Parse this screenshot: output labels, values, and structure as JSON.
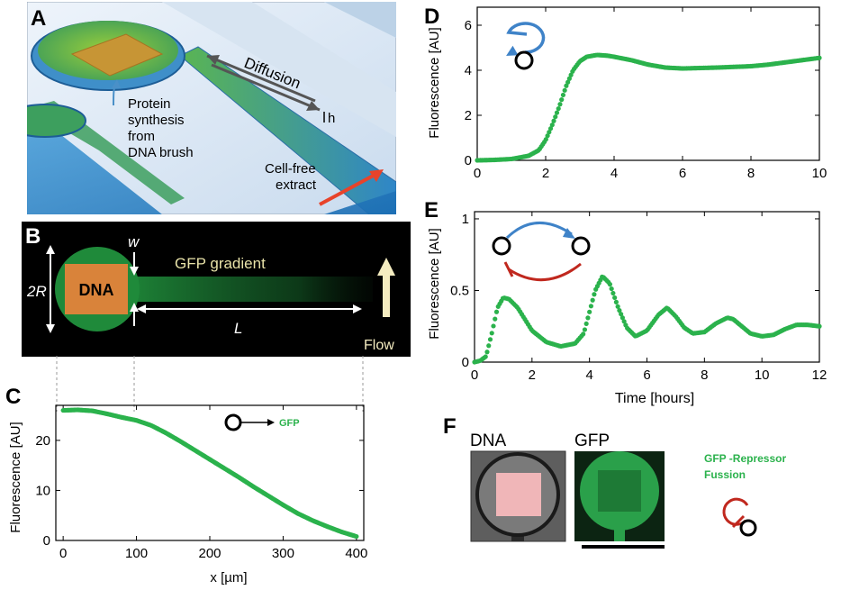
{
  "panels": {
    "A": {
      "label": "A",
      "diffusion": "Diffusion",
      "protein": [
        "Protein",
        "synthesis",
        "from",
        "DNA brush"
      ],
      "h": "h",
      "extract": [
        "Cell-free",
        "extract"
      ]
    },
    "B": {
      "label": "B",
      "dna": "DNA",
      "w": "w",
      "two_r": "2R",
      "gfp_gradient": "GFP gradient",
      "L": "L",
      "flow": "Flow"
    },
    "F": {
      "label": "F",
      "dna_title": "DNA",
      "gfp_title": "GFP",
      "fusion_text": [
        "GFP -Repressor",
        "Fussion"
      ]
    }
  },
  "colors": {
    "green_data": "#2bb24c",
    "blue_arrow": "#3f83c8",
    "red_repress": "#c0281e",
    "chamber_dna": "#d9833a",
    "flow_arrow": "#f4ecc0"
  },
  "chart_data": [
    {
      "id": "C",
      "label": "C",
      "type": "scatter",
      "xlabel": "x [µm]",
      "ylabel": "Fluorescence [AU]",
      "xlim": [
        -10,
        410
      ],
      "ylim": [
        0,
        27
      ],
      "xticks": [
        0,
        100,
        200,
        300,
        400
      ],
      "yticks": [
        0,
        10,
        20
      ],
      "legend": "GFP",
      "grid": false,
      "x": [
        0,
        20,
        40,
        60,
        80,
        100,
        120,
        140,
        160,
        180,
        200,
        220,
        240,
        260,
        280,
        300,
        320,
        340,
        360,
        380,
        400
      ],
      "y": [
        26.0,
        26.1,
        25.9,
        25.3,
        24.6,
        24.0,
        23.0,
        21.5,
        19.8,
        18.0,
        16.2,
        14.4,
        12.6,
        10.7,
        8.9,
        7.1,
        5.4,
        4.0,
        2.8,
        1.7,
        0.8
      ]
    },
    {
      "id": "D",
      "label": "D",
      "type": "scatter",
      "xlabel": "",
      "ylabel": "Fluorescence [AU]",
      "xlim": [
        0,
        10
      ],
      "ylim": [
        0,
        6.8
      ],
      "xticks": [
        0,
        2,
        4,
        6,
        8,
        10
      ],
      "yticks": [
        0,
        2,
        4,
        6
      ],
      "grid": false,
      "x": [
        0,
        0.5,
        1.0,
        1.5,
        1.8,
        2.0,
        2.2,
        2.4,
        2.6,
        2.8,
        3.0,
        3.2,
        3.5,
        3.8,
        4.0,
        4.5,
        5.0,
        5.5,
        6.0,
        6.5,
        7.0,
        7.5,
        8.0,
        8.5,
        9.0,
        9.5,
        10.0
      ],
      "y": [
        0.0,
        0.02,
        0.06,
        0.2,
        0.45,
        0.9,
        1.6,
        2.4,
        3.3,
        4.0,
        4.4,
        4.6,
        4.68,
        4.65,
        4.6,
        4.45,
        4.25,
        4.12,
        4.08,
        4.1,
        4.12,
        4.15,
        4.18,
        4.25,
        4.35,
        4.45,
        4.55
      ]
    },
    {
      "id": "E",
      "label": "E",
      "type": "scatter",
      "xlabel": "Time [hours]",
      "ylabel": "Fluorescence [AU]",
      "xlim": [
        0,
        12
      ],
      "ylim": [
        0,
        1.05
      ],
      "xticks": [
        0,
        2,
        4,
        6,
        8,
        10,
        12
      ],
      "yticks": [
        0,
        0.5,
        1
      ],
      "ytick_labels": [
        "0",
        "0.5",
        "1"
      ],
      "grid": false,
      "x": [
        0,
        0.2,
        0.4,
        0.6,
        0.8,
        1.0,
        1.2,
        1.5,
        2.0,
        2.5,
        3.0,
        3.5,
        3.8,
        4.0,
        4.2,
        4.45,
        4.7,
        5.0,
        5.3,
        5.6,
        6.0,
        6.4,
        6.7,
        7.0,
        7.3,
        7.6,
        8.0,
        8.4,
        8.8,
        9.0,
        9.3,
        9.6,
        10.0,
        10.4,
        10.8,
        11.2,
        11.6,
        12.0
      ],
      "y": [
        0.0,
        0.01,
        0.04,
        0.2,
        0.38,
        0.45,
        0.44,
        0.38,
        0.22,
        0.14,
        0.11,
        0.13,
        0.2,
        0.35,
        0.5,
        0.6,
        0.55,
        0.38,
        0.24,
        0.18,
        0.22,
        0.33,
        0.38,
        0.32,
        0.24,
        0.2,
        0.21,
        0.27,
        0.31,
        0.3,
        0.25,
        0.2,
        0.18,
        0.19,
        0.23,
        0.26,
        0.26,
        0.25
      ]
    }
  ]
}
